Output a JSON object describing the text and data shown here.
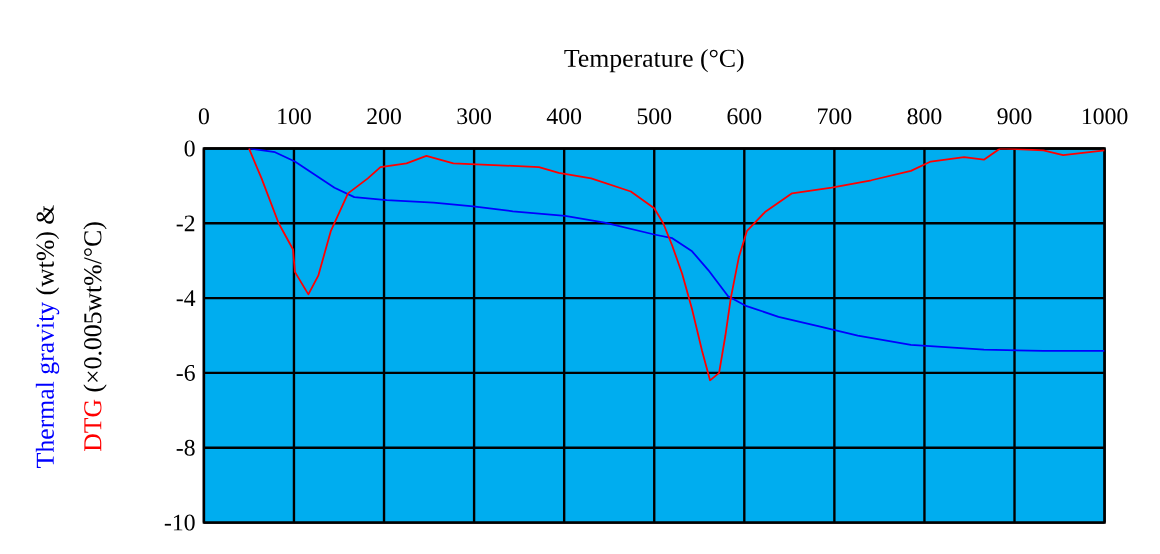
{
  "chart_data": {
    "type": "line",
    "xlabel": "Temperature (°C)",
    "xlim": [
      0,
      1000
    ],
    "xticks": [
      0,
      100,
      200,
      300,
      400,
      500,
      600,
      700,
      800,
      900,
      1000
    ],
    "ylim": [
      -10,
      0
    ],
    "yticks": [
      0,
      -2,
      -4,
      -6,
      -8,
      -10
    ],
    "grid": true,
    "marker": "none",
    "annotations": [
      "(wt%) &",
      "(×0.005wt%/°C)"
    ],
    "series": [
      {
        "name": "Thermal gravity",
        "color": "#0000ff",
        "x": [
          50,
          79,
          101,
          123,
          145,
          167,
          203,
          255,
          299,
          343,
          401,
          445,
          500,
          520,
          542,
          560,
          582,
          601,
          638,
          682,
          726,
          785,
          866,
          932,
          1000
        ],
        "values": [
          0,
          -0.1,
          -0.35,
          -0.7,
          -1.05,
          -1.3,
          -1.38,
          -1.45,
          -1.55,
          -1.68,
          -1.8,
          -1.98,
          -2.3,
          -2.4,
          -2.75,
          -3.25,
          -3.95,
          -4.2,
          -4.5,
          -4.75,
          -5.0,
          -5.25,
          -5.38,
          -5.41,
          -5.41
        ]
      },
      {
        "name": "DTG",
        "color": "#ff0000",
        "x": [
          50,
          64,
          83,
          99,
          101,
          116,
          127,
          141,
          160,
          182,
          196,
          225,
          247,
          277,
          328,
          372,
          394,
          430,
          474,
          500,
          510,
          520,
          531,
          542,
          553,
          562,
          572,
          579,
          585,
          594,
          603,
          623,
          653,
          697,
          741,
          785,
          807,
          844,
          866,
          884,
          932,
          954,
          1000
        ],
        "values": [
          0,
          -0.8,
          -2.0,
          -2.7,
          -3.3,
          -3.9,
          -3.4,
          -2.2,
          -1.2,
          -0.8,
          -0.5,
          -0.4,
          -0.2,
          -0.4,
          -0.45,
          -0.5,
          -0.65,
          -0.8,
          -1.15,
          -1.6,
          -2.0,
          -2.6,
          -3.35,
          -4.3,
          -5.4,
          -6.2,
          -6.0,
          -5.0,
          -4.0,
          -2.9,
          -2.2,
          -1.7,
          -1.2,
          -1.05,
          -0.85,
          -0.6,
          -0.35,
          -0.23,
          -0.3,
          0,
          -0.05,
          -0.18,
          -0.05
        ]
      }
    ]
  }
}
